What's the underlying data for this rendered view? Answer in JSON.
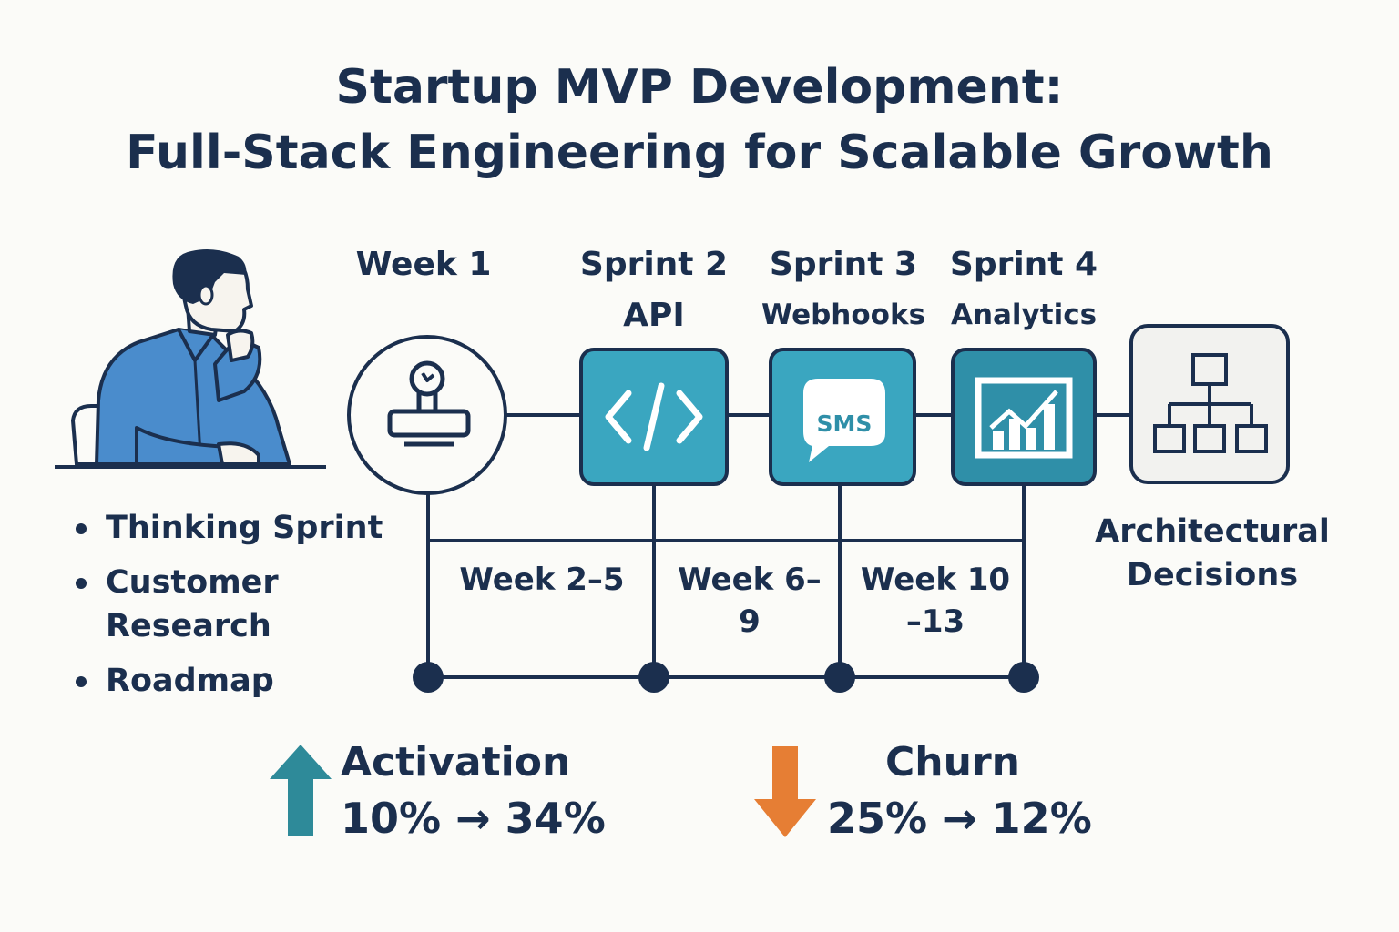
{
  "title": {
    "line1": "Startup MVP Development:",
    "line2": "Full-Stack Engineering for Scalable Growth"
  },
  "discovery": {
    "bullets": [
      "Thinking Sprint",
      "Customer Research",
      "Roadmap"
    ]
  },
  "stages": [
    {
      "label": "Week 1",
      "sub": "",
      "icon": "stamp-icon"
    },
    {
      "label": "Sprint 2",
      "sub": "API",
      "icon": "code-icon"
    },
    {
      "label": "Sprint 3",
      "sub": "Webhooks",
      "icon": "sms-icon",
      "icon_text": "SMS"
    },
    {
      "label": "Sprint 4",
      "sub": "Analytics",
      "icon": "analytics-chart-icon"
    }
  ],
  "architecture": {
    "label": "Architectural Decisions",
    "icon": "hierarchy-icon"
  },
  "weeks": [
    {
      "line1": "Week 2–5",
      "line2": ""
    },
    {
      "line1": "Week 6–",
      "line2": "9"
    },
    {
      "line1": "Week 10",
      "line2": "–13"
    }
  ],
  "metrics": {
    "activation": {
      "label": "Activation",
      "value": "10% → 34%",
      "direction": "up",
      "color": "#2e8a99"
    },
    "churn": {
      "label": "Churn",
      "value": "25% → 12%",
      "direction": "down",
      "color": "#e67e34"
    }
  },
  "colors": {
    "navy": "#1b2f4e",
    "teal": "#3aa6c0",
    "teal_dark": "#2f8fa8",
    "person_blue": "#4a8ccc"
  }
}
